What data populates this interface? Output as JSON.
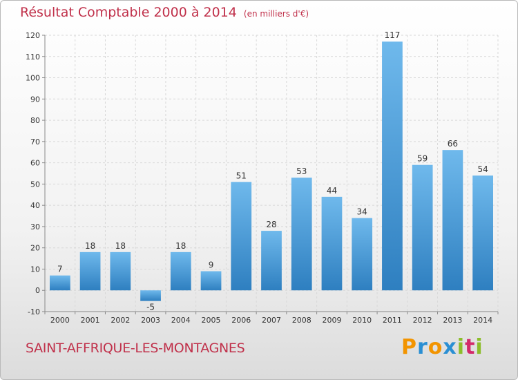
{
  "header": {
    "title": "Résultat Comptable 2000 à 2014",
    "subtitle": "(en milliers d'€)"
  },
  "footer": {
    "commune": "SAINT-AFFRIQUE-LES-MONTAGNES",
    "logo": "Proxiti"
  },
  "colors": {
    "title": "#c0304a",
    "bar_light": "#6fb9ec",
    "bar_dark": "#2e7fc0",
    "grid": "#d8d8d8"
  },
  "chart_data": {
    "type": "bar",
    "title": "Résultat Comptable 2000 à 2014",
    "subtitle": "(en milliers d'€)",
    "xlabel": "",
    "ylabel": "",
    "categories": [
      "2000",
      "2001",
      "2002",
      "2003",
      "2004",
      "2005",
      "2006",
      "2007",
      "2008",
      "2009",
      "2010",
      "2011",
      "2012",
      "2013",
      "2014"
    ],
    "values": [
      7,
      18,
      18,
      -5,
      18,
      9,
      51,
      28,
      53,
      44,
      34,
      117,
      59,
      66,
      54
    ],
    "ylim": [
      -10,
      120
    ],
    "yticks": [
      -10,
      0,
      10,
      20,
      30,
      40,
      50,
      60,
      70,
      80,
      90,
      100,
      110,
      120
    ],
    "grid": true,
    "data_labels": true
  }
}
